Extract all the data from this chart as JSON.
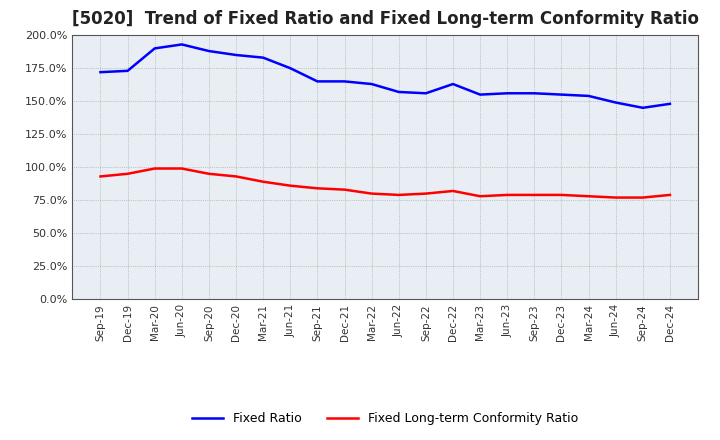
{
  "title": "[5020]  Trend of Fixed Ratio and Fixed Long-term Conformity Ratio",
  "x_labels": [
    "Sep-19",
    "Dec-19",
    "Mar-20",
    "Jun-20",
    "Sep-20",
    "Dec-20",
    "Mar-21",
    "Jun-21",
    "Sep-21",
    "Dec-21",
    "Mar-22",
    "Jun-22",
    "Sep-22",
    "Dec-22",
    "Mar-23",
    "Jun-23",
    "Sep-23",
    "Dec-23",
    "Mar-24",
    "Jun-24",
    "Sep-24",
    "Dec-24"
  ],
  "fixed_ratio": [
    172,
    173,
    190,
    193,
    188,
    185,
    183,
    175,
    165,
    165,
    163,
    157,
    156,
    163,
    155,
    156,
    156,
    155,
    154,
    149,
    145,
    148
  ],
  "fixed_lt_ratio": [
    93,
    95,
    99,
    99,
    95,
    93,
    89,
    86,
    84,
    83,
    80,
    79,
    80,
    82,
    78,
    79,
    79,
    79,
    78,
    77,
    77,
    79
  ],
  "ylim": [
    0,
    200
  ],
  "yticks": [
    0,
    25,
    50,
    75,
    100,
    125,
    150,
    175,
    200
  ],
  "blue_color": "#0000FF",
  "red_color": "#FF0000",
  "plot_bg_color": "#E8EEF4",
  "fig_bg_color": "#FFFFFF",
  "grid_color": "#888888",
  "title_fontsize": 12,
  "legend_labels": [
    "Fixed Ratio",
    "Fixed Long-term Conformity Ratio"
  ]
}
